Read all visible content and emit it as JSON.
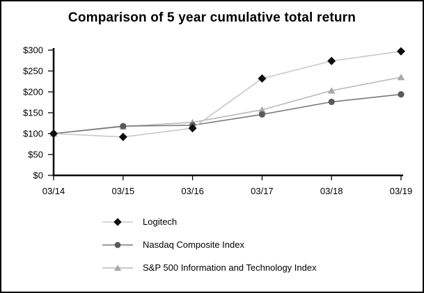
{
  "chart_data": {
    "type": "line",
    "title": "Comparison of 5 year cumulative total return",
    "categories": [
      "03/14",
      "03/15",
      "03/16",
      "03/17",
      "03/18",
      "03/19"
    ],
    "series": [
      {
        "name": "Logitech",
        "marker": "diamond",
        "marker_color": "#0d0d0d",
        "line_color": "#c8c8c8",
        "values": [
          100,
          92,
          113,
          232,
          274,
          297
        ]
      },
      {
        "name": "Nasdaq Composite Index",
        "marker": "circle",
        "marker_color": "#5a5a5a",
        "line_color": "#787878",
        "values": [
          100,
          118,
          120,
          146,
          176,
          194
        ]
      },
      {
        "name": "S&P 500 Information and Technology Index",
        "marker": "triangle",
        "marker_color": "#a9a9a9",
        "line_color": "#b9b9b9",
        "values": [
          100,
          117,
          127,
          157,
          203,
          235
        ]
      }
    ],
    "xlabel": "",
    "ylabel": "",
    "ylim": [
      0,
      300
    ],
    "ytick_step": 50,
    "ytick_labels": [
      "$0",
      "$50",
      "$100",
      "$150",
      "$200",
      "$250",
      "$300"
    ],
    "grid": false,
    "legend_position": "bottom-left",
    "axis_color": "#000000",
    "text_color": "#000000",
    "background": "#ffffff",
    "border_color": "#000000"
  }
}
